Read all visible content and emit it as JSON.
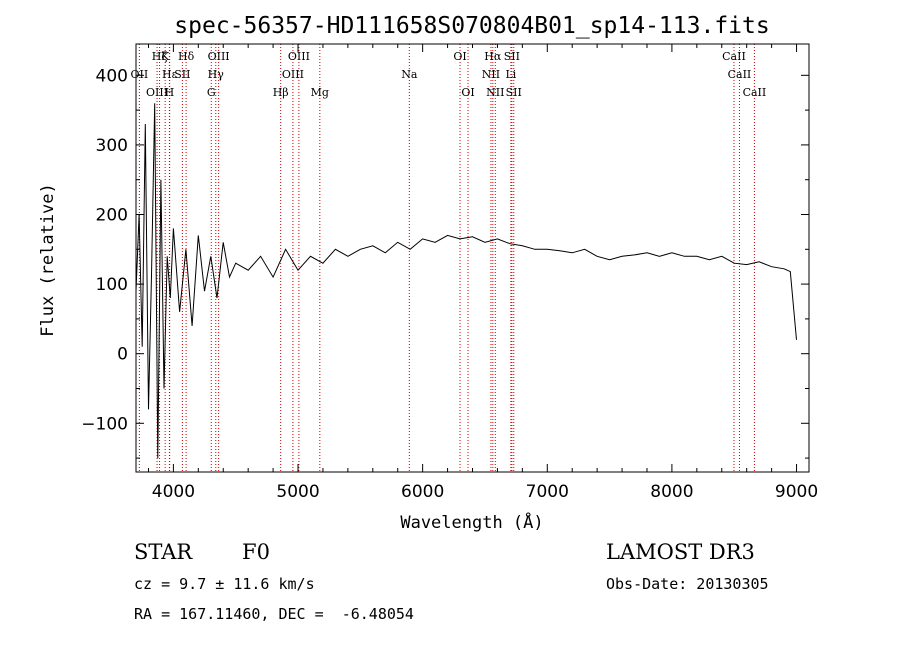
{
  "chart_data": {
    "type": "line",
    "title": "spec-56357-HD111658S070804B01_sp14-113.fits",
    "xlabel": "Wavelength (Å)",
    "ylabel": "Flux (relative)",
    "xlim": [
      3700,
      9100
    ],
    "ylim": [
      -170,
      445
    ],
    "x_ticks": [
      4000,
      5000,
      6000,
      7000,
      8000,
      9000
    ],
    "y_ticks": [
      -100,
      0,
      100,
      200,
      300,
      400
    ],
    "x_tick_labels": [
      "4000",
      "5000",
      "6000",
      "7000",
      "8000",
      "9000"
    ],
    "y_tick_labels": [
      "−100",
      "0",
      "100",
      "200",
      "300",
      "400"
    ],
    "series": [
      {
        "name": "flux",
        "x": [
          3700,
          3725,
          3750,
          3775,
          3800,
          3825,
          3850,
          3875,
          3900,
          3925,
          3950,
          3975,
          4000,
          4050,
          4100,
          4150,
          4200,
          4250,
          4300,
          4350,
          4400,
          4450,
          4500,
          4600,
          4700,
          4800,
          4900,
          5000,
          5100,
          5200,
          5300,
          5400,
          5500,
          5600,
          5700,
          5800,
          5900,
          6000,
          6100,
          6200,
          6300,
          6400,
          6500,
          6600,
          6700,
          6800,
          6900,
          7000,
          7100,
          7200,
          7300,
          7400,
          7500,
          7600,
          7700,
          7800,
          7900,
          8000,
          8100,
          8200,
          8300,
          8400,
          8500,
          8600,
          8700,
          8800,
          8900,
          8950,
          9000
        ],
        "y": [
          90,
          200,
          10,
          330,
          -80,
          120,
          360,
          -150,
          250,
          -50,
          140,
          80,
          180,
          60,
          150,
          40,
          170,
          90,
          140,
          80,
          160,
          110,
          130,
          120,
          140,
          110,
          150,
          120,
          140,
          130,
          150,
          140,
          150,
          155,
          145,
          160,
          150,
          165,
          160,
          170,
          165,
          168,
          160,
          165,
          158,
          155,
          150,
          150,
          148,
          145,
          150,
          140,
          135,
          140,
          142,
          145,
          140,
          145,
          140,
          140,
          135,
          140,
          130,
          128,
          132,
          125,
          122,
          118,
          20
        ]
      }
    ],
    "line_labels": [
      {
        "label": "Hζ",
        "x": 3889,
        "row": 1
      },
      {
        "label": "K",
        "x": 3934,
        "row": 1
      },
      {
        "label": "Hδ",
        "x": 4102,
        "row": 1
      },
      {
        "label": "OIII",
        "x": 4363,
        "row": 1
      },
      {
        "label": "OIII",
        "x": 5007,
        "row": 1
      },
      {
        "label": "OI",
        "x": 6300,
        "row": 1
      },
      {
        "label": "Hα",
        "x": 6563,
        "row": 1
      },
      {
        "label": "SII",
        "x": 6716,
        "row": 1
      },
      {
        "label": "CaII",
        "x": 8498,
        "row": 1
      },
      {
        "label": "OII",
        "x": 3727,
        "row": 2
      },
      {
        "label": "Hε",
        "x": 3970,
        "row": 2
      },
      {
        "label": "SII",
        "x": 4072,
        "row": 2
      },
      {
        "label": "Hγ",
        "x": 4340,
        "row": 2
      },
      {
        "label": "OIII",
        "x": 4959,
        "row": 2
      },
      {
        "label": "Na",
        "x": 5893,
        "row": 2
      },
      {
        "label": "NII",
        "x": 6548,
        "row": 2
      },
      {
        "label": "Li",
        "x": 6708,
        "row": 2
      },
      {
        "label": "CaII",
        "x": 8542,
        "row": 2
      },
      {
        "label": "OIII",
        "x": 3869,
        "row": 3
      },
      {
        "label": "H",
        "x": 3968,
        "row": 3
      },
      {
        "label": "G",
        "x": 4304,
        "row": 3
      },
      {
        "label": "Hβ",
        "x": 4861,
        "row": 3
      },
      {
        "label": "Mg",
        "x": 5175,
        "row": 3
      },
      {
        "label": "OI",
        "x": 6364,
        "row": 3
      },
      {
        "label": "NII",
        "x": 6583,
        "row": 3
      },
      {
        "label": "SII",
        "x": 6731,
        "row": 3
      },
      {
        "label": "CaII",
        "x": 8662,
        "row": 3
      }
    ],
    "line_color": "#000000",
    "marker_line_color": "#cc0000"
  },
  "info": {
    "class": "STAR",
    "subclass": "F0",
    "survey": "LAMOST DR3",
    "redshift": "cz = 9.7 ± 11.6 km/s",
    "obs_date": "Obs-Date: 20130305",
    "coords": "RA = 167.11460, DEC =  -6.48054"
  }
}
